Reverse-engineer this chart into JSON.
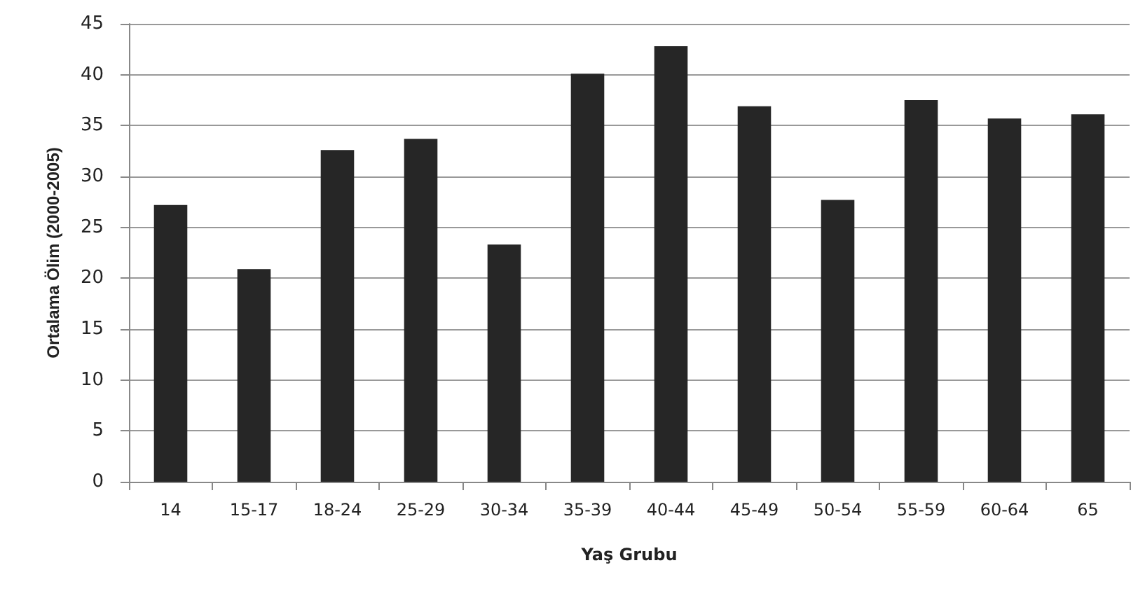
{
  "chart_data": {
    "type": "bar",
    "xlabel": "Yaş Grubu",
    "ylabel": "Ortalama Ölim (2000-2005)",
    "categories": [
      "14",
      "15-17",
      "18-24",
      "25-29",
      "30-34",
      "35-39",
      "40-44",
      "45-49",
      "50-54",
      "55-59",
      "60-64",
      "65"
    ],
    "values": [
      27.2,
      20.9,
      32.6,
      33.7,
      23.3,
      40.1,
      42.8,
      36.9,
      27.7,
      37.5,
      35.7,
      36.1
    ],
    "color": "#262626",
    "ylim": [
      0,
      45
    ],
    "yticks": [
      0,
      5,
      10,
      15,
      20,
      25,
      30,
      35,
      40,
      45
    ],
    "grid": "y"
  }
}
